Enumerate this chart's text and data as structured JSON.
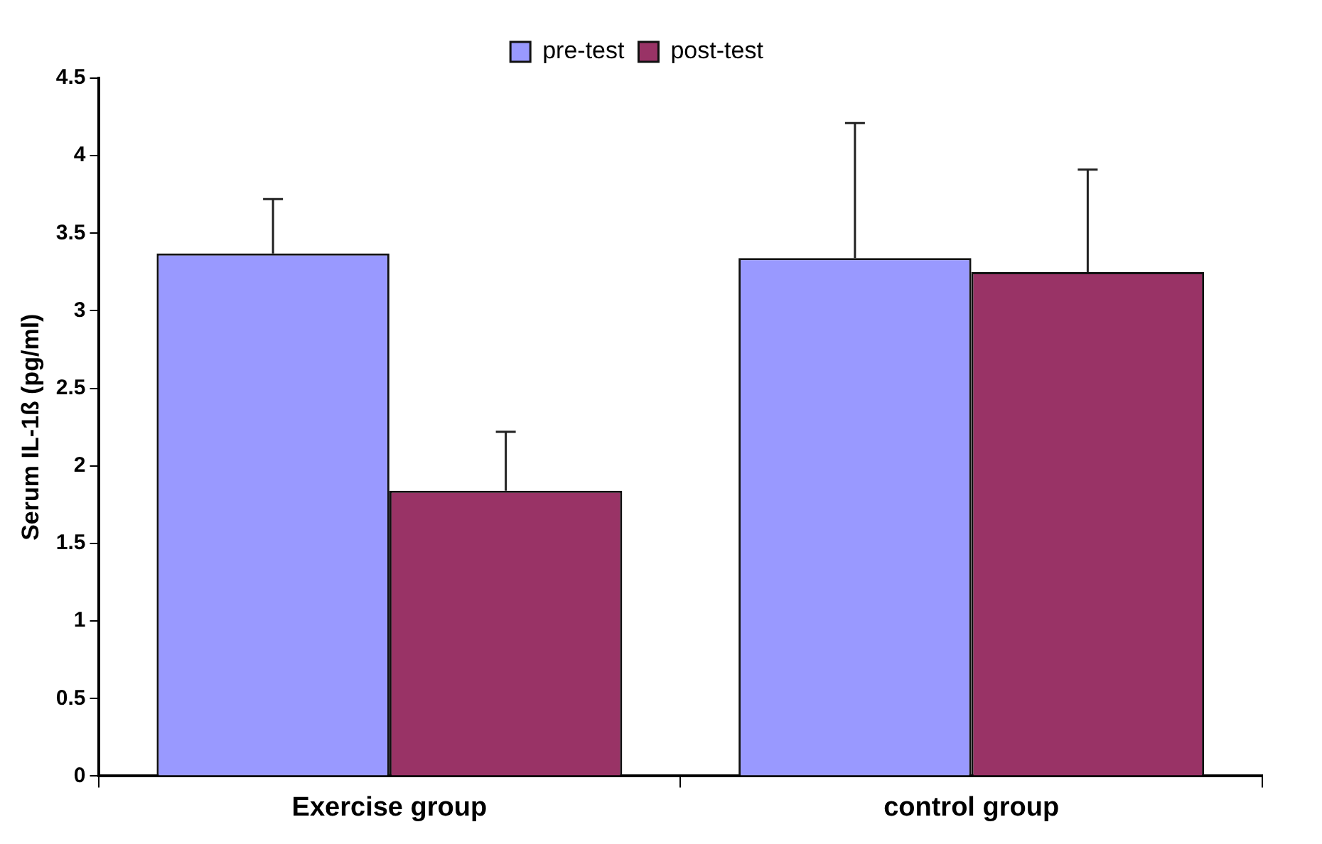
{
  "chart_data": {
    "type": "bar",
    "ylabel": "Serum IL-1ß (pg/ml)",
    "categories": [
      "Exercise group",
      "control group"
    ],
    "series": [
      {
        "name": "pre-test",
        "color": "#9999ff",
        "values": [
          3.37,
          3.34
        ],
        "errors": [
          [
            3.37,
            3.72
          ],
          [
            3.34,
            4.21
          ]
        ]
      },
      {
        "name": "post-test",
        "color": "#993366",
        "values": [
          1.84,
          3.25
        ],
        "errors": [
          [
            1.84,
            2.22
          ],
          [
            3.25,
            3.91
          ]
        ]
      }
    ],
    "ylim": [
      0,
      4.5
    ],
    "yticks": [
      0,
      0.5,
      1,
      1.5,
      2,
      2.5,
      3,
      3.5,
      4,
      4.5
    ],
    "grid": false,
    "legend": "top"
  }
}
